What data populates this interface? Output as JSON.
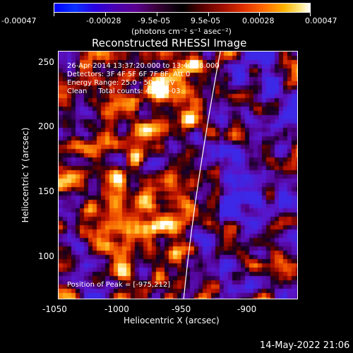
{
  "colorbar": {
    "tick_labels": [
      "-0.00047",
      "-0.00028",
      "-9.5e-05",
      "9.5e-05",
      "0.00028",
      "0.00047"
    ],
    "units": "(photons cm⁻² s⁻¹ asec⁻²)"
  },
  "plot": {
    "title": "Reconstructed RHESSI Image",
    "info_lines": [
      "26-Apr-2014 13:37:20.000 to 13:40:08.000",
      "Detectors: 3F 4F 5F 6F 7F 8F, Att 0",
      "Energy Range: 25.0 - 50.0 keV",
      "Clean     Total counts: 4.97E+03"
    ],
    "peak_label": "Position of Peak = [-975,212]",
    "xlabel": "Heliocentric X (arcsec)",
    "ylabel": "Heliocentric Y (arcsec)",
    "x_ticks": [
      "-1050",
      "-1000",
      "-950",
      "-900"
    ],
    "y_ticks": [
      "100",
      "150",
      "200",
      "250"
    ]
  },
  "footer": {
    "timestamp": "14-May-2022 21:06"
  }
}
